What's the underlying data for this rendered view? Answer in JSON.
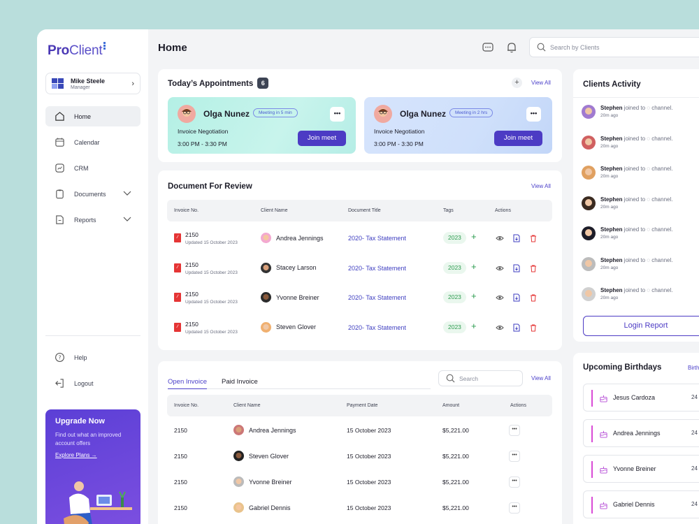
{
  "app": {
    "logo_primary": "Pro",
    "logo_secondary": "Client",
    "page_title": "Home",
    "search_placeholder": "Search by Clients"
  },
  "user": {
    "name": "Mike Steele",
    "role": "Manager"
  },
  "nav": {
    "items": [
      {
        "label": "Home",
        "icon": "home-icon"
      },
      {
        "label": "Calendar",
        "icon": "calendar-icon"
      },
      {
        "label": "CRM",
        "icon": "chart-icon"
      },
      {
        "label": "Documents",
        "icon": "clipboard-icon"
      },
      {
        "label": "Reports",
        "icon": "report-icon"
      }
    ],
    "secondary": [
      {
        "label": "Help",
        "icon": "help-icon"
      },
      {
        "label": "Logout",
        "icon": "logout-icon"
      }
    ]
  },
  "upgrade": {
    "title": "Upgrade Now",
    "text": "Find out what an improved account offers",
    "link": "Explore Plans →"
  },
  "appointments": {
    "title": "Today’s Appointments",
    "count": "6",
    "view_all": "View All",
    "items": [
      {
        "name": "Olga Nunez",
        "pill": "Meeting in 5 min",
        "subject": "Invoice Negotiation",
        "time": "3:00 PM - 3:30 PM",
        "button": "Join meet",
        "more": "•••"
      },
      {
        "name": "Olga Nunez",
        "pill": "Meeting in 2 hrs",
        "subject": "Invoice Negotiation",
        "time": "3:00 PM - 3:30 PM",
        "button": "Join meet",
        "more": "•••"
      }
    ]
  },
  "documents": {
    "title": "Document For Review",
    "view_all": "View All",
    "columns": [
      "Invoice No.",
      "Client Name",
      "Document Title",
      "Tags",
      "Actions"
    ],
    "rows": [
      {
        "invoice": "2150",
        "updated": "Updated 15 October 2023",
        "client": "Andrea Jennings",
        "doc": "2020- Tax Statement",
        "tag": "2023"
      },
      {
        "invoice": "2150",
        "updated": "Updated 15 October 2023",
        "client": "Stacey Larson",
        "doc": "2020- Tax Statement",
        "tag": "2023"
      },
      {
        "invoice": "2150",
        "updated": "Updated 15 October 2023",
        "client": "Yvonne Breiner",
        "doc": "2020- Tax Statement",
        "tag": "2023"
      },
      {
        "invoice": "2150",
        "updated": "Updated 15 October 2023",
        "client": "Steven Glover",
        "doc": "2020- Tax Statement",
        "tag": "2023"
      }
    ]
  },
  "invoices": {
    "tab_open": "Open Invoice",
    "tab_paid": "Paid Invoice",
    "search_placeholder": "Search",
    "view_all": "View All",
    "columns": [
      "Invoice No.",
      "Client Name",
      "Payment Date",
      "Amount",
      "Actions"
    ],
    "rows": [
      {
        "invoice": "2150",
        "client": "Andrea Jennings",
        "date": "15 October 2023",
        "amount": "$5,221.00"
      },
      {
        "invoice": "2150",
        "client": "Steven Glover",
        "date": "15 October 2023",
        "amount": "$5,221.00"
      },
      {
        "invoice": "2150",
        "client": "Yvonne Breiner",
        "date": "15 October 2023",
        "amount": "$5,221.00"
      },
      {
        "invoice": "2150",
        "client": "Gabriel Dennis",
        "date": "15 October 2023",
        "amount": "$5,221.00"
      }
    ]
  },
  "activity": {
    "title": "Clients Activity",
    "items": [
      {
        "name": "Stephen",
        "text": " joined to ◌ channel.",
        "ago": "20m ago"
      },
      {
        "name": "Stephen",
        "text": " joined to ◌ channel.",
        "ago": "20m ago"
      },
      {
        "name": "Stephen",
        "text": " joined to ◌ channel.",
        "ago": "20m ago"
      },
      {
        "name": "Stephen",
        "text": " joined to ◌ channel.",
        "ago": "20m ago"
      },
      {
        "name": "Stephen",
        "text": " joined to ◌ channel.",
        "ago": "20m ago"
      },
      {
        "name": "Stephen",
        "text": " joined to ◌ channel.",
        "ago": "20m ago"
      },
      {
        "name": "Stephen",
        "text": " joined to ◌ channel.",
        "ago": "20m ago"
      }
    ],
    "button": "Login Report"
  },
  "birthdays": {
    "title": "Upcoming Birthdays",
    "link": "Birth",
    "items": [
      {
        "name": "Jesus Cardoza",
        "date": "24"
      },
      {
        "name": "Andrea Jennings",
        "date": "24"
      },
      {
        "name": "Yvonne Breiner",
        "date": "24"
      },
      {
        "name": "Gabriel Dennis",
        "date": "24"
      }
    ]
  },
  "colors": {
    "accent": "#4c3bc4",
    "tag_green": "#2b9b4e",
    "pdf_red": "#e53535",
    "appt_1": "#b9efe7",
    "appt_2": "#cfe0fb"
  }
}
